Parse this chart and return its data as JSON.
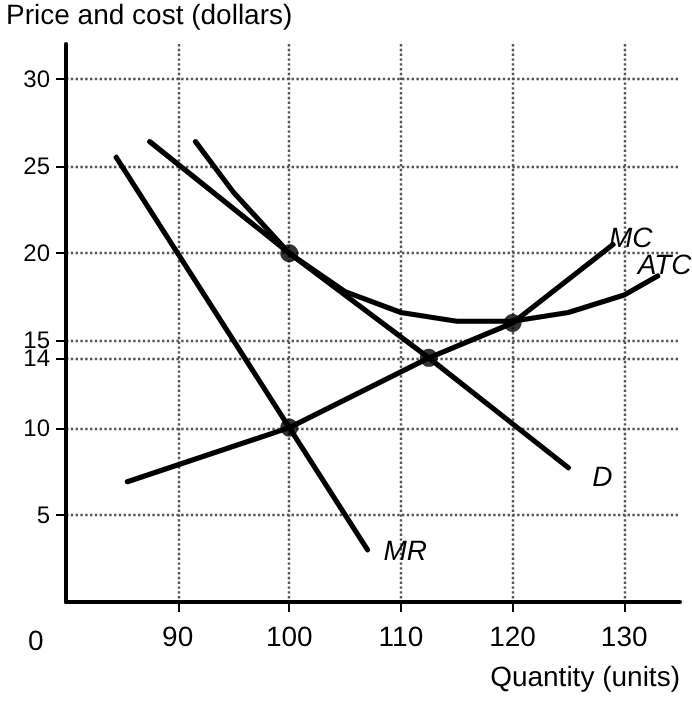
{
  "chart_data": {
    "type": "line",
    "xlabel": "Quantity (units)",
    "ylabel": "Price and cost (dollars)",
    "xlim": [
      80,
      135
    ],
    "xticks": [
      90,
      100,
      110,
      120,
      130
    ],
    "annotations": [
      "0"
    ],
    "ylim": [
      0,
      32
    ],
    "yticks": [
      5,
      10,
      14,
      15,
      20,
      25,
      30
    ],
    "grid": true,
    "legend": false,
    "marker": "none",
    "line_style": "solid",
    "series": [
      {
        "name": "MR",
        "color": "#000000",
        "x": [
          84.5,
          100,
          107
        ],
        "values": [
          25.5,
          10,
          3
        ]
      },
      {
        "name": "D",
        "color": "#000000",
        "x": [
          87.5,
          100,
          112.5,
          125
        ],
        "values": [
          26.4,
          20,
          14,
          7.7
        ]
      },
      {
        "name": "MC",
        "color": "#000000",
        "x": [
          85.5,
          100,
          112.5,
          120,
          129
        ],
        "values": [
          6.9,
          10,
          14,
          16,
          20.5
        ]
      },
      {
        "name": "ATC",
        "color": "#000000",
        "x": [
          91.6,
          95,
          100,
          105,
          110,
          115,
          120,
          125,
          130,
          133
        ],
        "values": [
          26.4,
          23.5,
          20,
          17.8,
          16.6,
          16.1,
          16.1,
          16.6,
          17.6,
          18.7
        ]
      },
      {
        "type": "scatter",
        "color": "#000000",
        "marker": "circle",
        "x": [
          100,
          120,
          112.5,
          100
        ],
        "values": [
          20,
          16,
          14,
          10
        ]
      }
    ]
  }
}
